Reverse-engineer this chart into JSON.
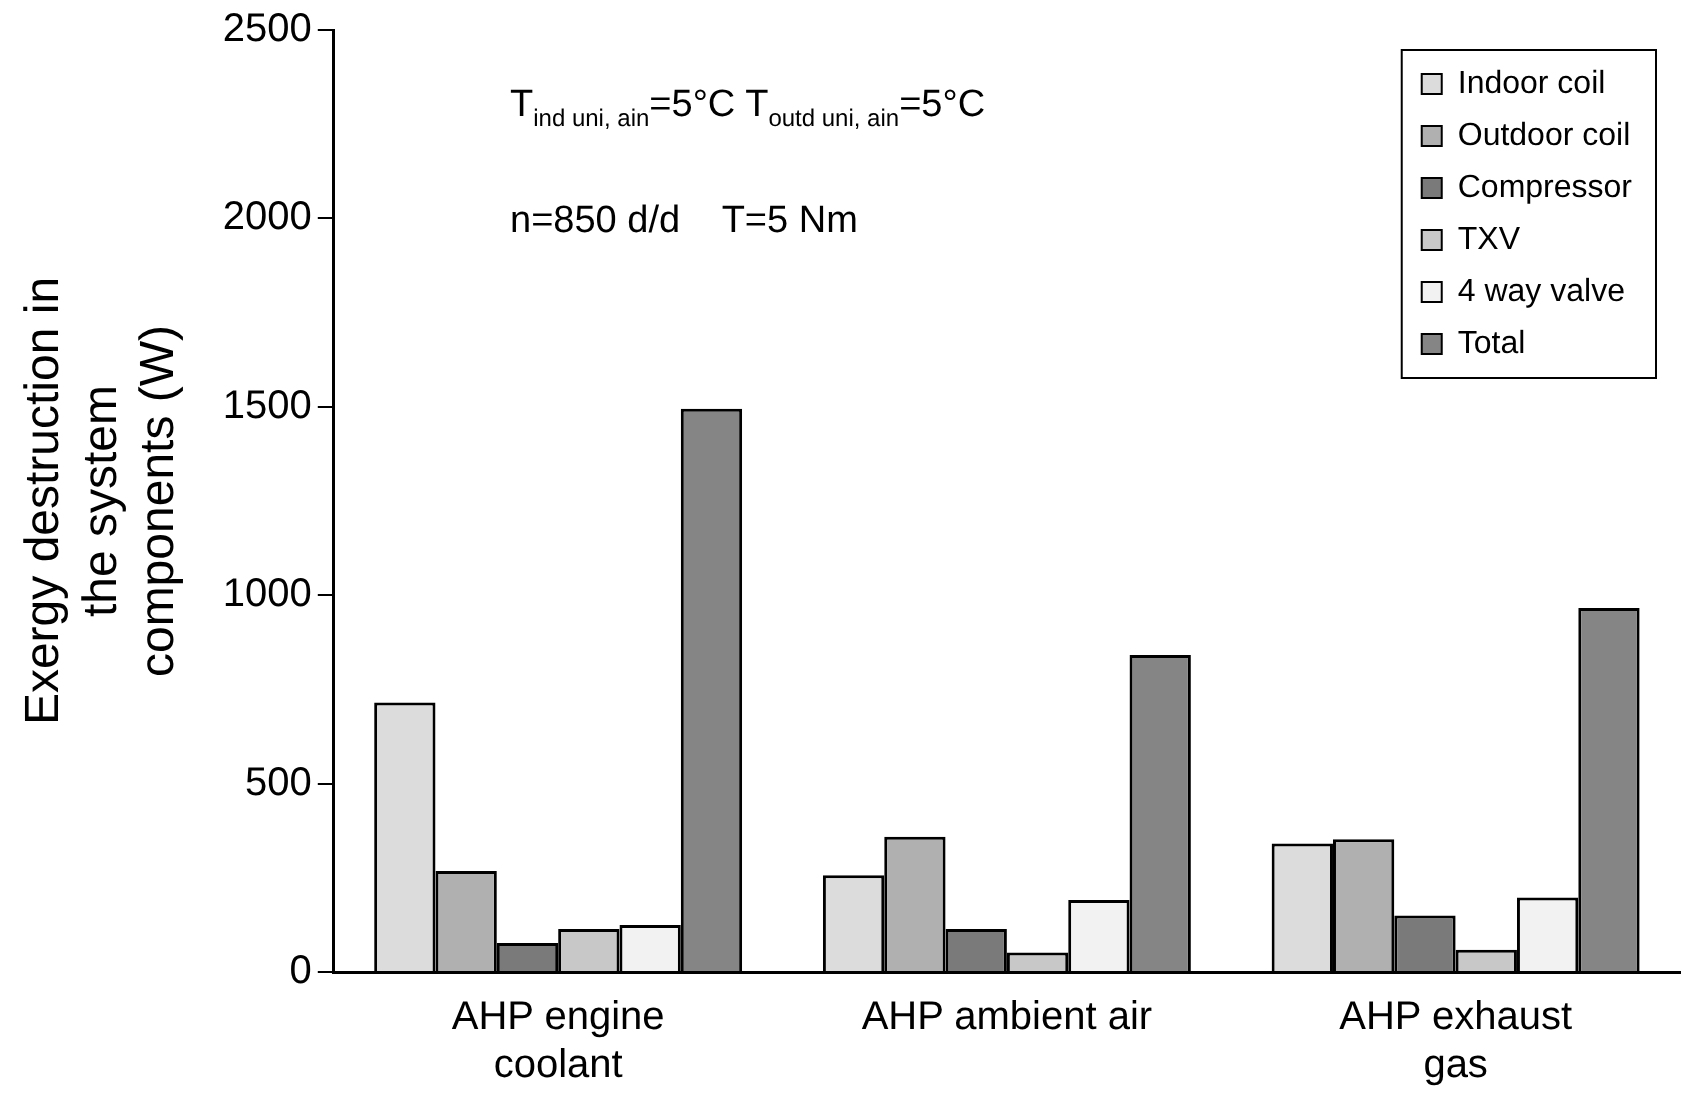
{
  "chart_data": {
    "type": "bar",
    "ylabel": "Exergy destruction in the system components (W)",
    "categories": [
      "AHP engine coolant",
      "AHP ambient air",
      "AHP exhaust gas"
    ],
    "series": [
      {
        "name": "Indoor coil",
        "color": "#dcdcdc",
        "values": [
          715,
          257,
          341
        ]
      },
      {
        "name": "Outdoor coil",
        "color": "#b0b0b0",
        "values": [
          268,
          359,
          352
        ]
      },
      {
        "name": "Compressor",
        "color": "#7a7a7a",
        "values": [
          77,
          114,
          150
        ]
      },
      {
        "name": "TXV",
        "color": "#c8c8c8",
        "values": [
          114,
          52,
          59
        ]
      },
      {
        "name": "4 way valve",
        "color": "#f2f2f2",
        "values": [
          125,
          191,
          198
        ]
      },
      {
        "name": "Total",
        "color": "#858585",
        "values": [
          1495,
          841,
          966
        ]
      }
    ],
    "ylim": [
      0,
      2500
    ],
    "yticks": [
      0,
      500,
      1000,
      1500,
      2000,
      2500
    ],
    "grid": false,
    "legend": "top right",
    "annotations": [
      "T$_{ind uni, ain}$=5°C T$_{outd uni, ain}$=5°C",
      "n=850 d/d    T=5 Nm"
    ]
  }
}
